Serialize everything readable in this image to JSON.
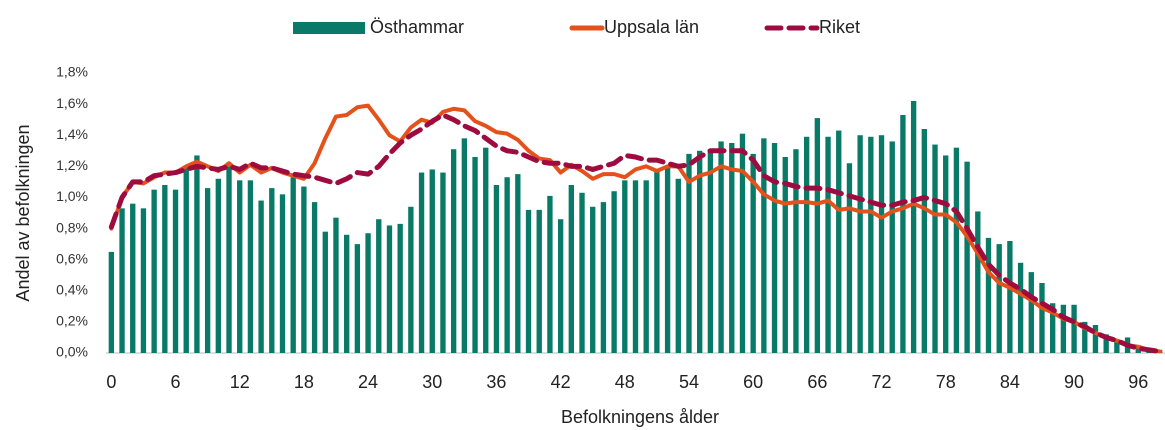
{
  "chart_data": {
    "type": "bar_line",
    "x_label": "Befolkningens ålder",
    "y_label": "Andel av befolkningen",
    "categories": [
      "0",
      null,
      null,
      null,
      null,
      null,
      "6",
      null,
      null,
      null,
      null,
      null,
      "12",
      null,
      null,
      null,
      null,
      null,
      "18",
      null,
      null,
      null,
      null,
      null,
      "24",
      null,
      null,
      null,
      null,
      null,
      "30",
      null,
      null,
      null,
      null,
      null,
      "36",
      null,
      null,
      null,
      null,
      null,
      "42",
      null,
      null,
      null,
      null,
      null,
      "48",
      null,
      null,
      null,
      null,
      null,
      "54",
      null,
      null,
      null,
      null,
      null,
      "60",
      null,
      null,
      null,
      null,
      null,
      "66",
      null,
      null,
      null,
      null,
      null,
      "72",
      null,
      null,
      null,
      null,
      null,
      "78",
      null,
      null,
      null,
      null,
      null,
      "84",
      null,
      null,
      null,
      null,
      null,
      "90",
      null,
      null,
      null,
      null,
      null,
      "96",
      null,
      null
    ],
    "series": [
      {
        "name": "Östhammar",
        "type": "bar",
        "color": "#0a7a68",
        "values": [
          0.65,
          0.93,
          0.96,
          0.93,
          1.05,
          1.08,
          1.05,
          1.2,
          1.27,
          1.06,
          1.12,
          1.2,
          1.11,
          1.11,
          0.98,
          1.06,
          1.02,
          1.13,
          1.07,
          0.97,
          0.78,
          0.87,
          0.76,
          0.7,
          0.77,
          0.86,
          0.82,
          0.83,
          0.94,
          1.16,
          1.18,
          1.16,
          1.31,
          1.38,
          1.26,
          1.32,
          1.08,
          1.13,
          1.15,
          0.92,
          0.92,
          1.01,
          0.86,
          1.08,
          1.03,
          0.94,
          0.97,
          1.04,
          1.11,
          1.11,
          1.11,
          1.17,
          1.2,
          1.12,
          1.28,
          1.3,
          1.31,
          1.36,
          1.35,
          1.41,
          1.28,
          1.38,
          1.35,
          1.26,
          1.31,
          1.39,
          1.51,
          1.39,
          1.43,
          1.22,
          1.4,
          1.39,
          1.4,
          1.36,
          1.53,
          1.62,
          1.44,
          1.34,
          1.27,
          1.32,
          1.23,
          0.91,
          0.74,
          0.7,
          0.72,
          0.58,
          0.52,
          0.45,
          0.32,
          0.31,
          0.31,
          0.2,
          0.18,
          0.12,
          0.09,
          0.1,
          0.05,
          0.03,
          0.02
        ]
      },
      {
        "name": "Uppsala län",
        "type": "line",
        "color": "#e4511a",
        "values": [
          0.8,
          1.0,
          1.1,
          1.09,
          1.13,
          1.16,
          1.16,
          1.2,
          1.23,
          1.2,
          1.17,
          1.22,
          1.16,
          1.21,
          1.16,
          1.19,
          1.16,
          1.14,
          1.12,
          1.22,
          1.38,
          1.52,
          1.53,
          1.58,
          1.59,
          1.5,
          1.4,
          1.36,
          1.45,
          1.5,
          1.48,
          1.55,
          1.57,
          1.56,
          1.49,
          1.46,
          1.42,
          1.41,
          1.37,
          1.3,
          1.25,
          1.24,
          1.16,
          1.21,
          1.17,
          1.12,
          1.15,
          1.15,
          1.13,
          1.18,
          1.2,
          1.17,
          1.2,
          1.2,
          1.1,
          1.14,
          1.16,
          1.2,
          1.18,
          1.17,
          1.1,
          1.02,
          0.98,
          0.96,
          0.97,
          0.97,
          0.96,
          0.98,
          0.92,
          0.93,
          0.91,
          0.91,
          0.87,
          0.91,
          0.93,
          0.96,
          0.93,
          0.89,
          0.89,
          0.84,
          0.75,
          0.64,
          0.52,
          0.45,
          0.42,
          0.38,
          0.34,
          0.29,
          0.26,
          0.22,
          0.2,
          0.16,
          0.13,
          0.1,
          0.08,
          0.05,
          0.04,
          0.02,
          0.01
        ]
      },
      {
        "name": "Riket",
        "type": "dashed-line",
        "color": "#9e0b3f",
        "values": [
          0.81,
          1.0,
          1.1,
          1.1,
          1.14,
          1.15,
          1.16,
          1.18,
          1.2,
          1.19,
          1.18,
          1.2,
          1.18,
          1.22,
          1.19,
          1.19,
          1.17,
          1.15,
          1.14,
          1.13,
          1.11,
          1.09,
          1.12,
          1.16,
          1.15,
          1.2,
          1.28,
          1.35,
          1.4,
          1.44,
          1.49,
          1.53,
          1.5,
          1.46,
          1.43,
          1.38,
          1.33,
          1.3,
          1.29,
          1.26,
          1.23,
          1.22,
          1.22,
          1.2,
          1.2,
          1.18,
          1.2,
          1.22,
          1.27,
          1.26,
          1.24,
          1.24,
          1.22,
          1.2,
          1.21,
          1.26,
          1.3,
          1.3,
          1.3,
          1.3,
          1.24,
          1.14,
          1.1,
          1.09,
          1.07,
          1.06,
          1.06,
          1.05,
          1.03,
          1.01,
          0.99,
          0.97,
          0.95,
          0.95,
          0.97,
          0.98,
          1.0,
          0.98,
          0.96,
          0.91,
          0.8,
          0.68,
          0.57,
          0.5,
          0.45,
          0.41,
          0.36,
          0.32,
          0.28,
          0.23,
          0.2,
          0.17,
          0.13,
          0.1,
          0.08,
          0.05,
          0.03,
          0.02,
          0.01
        ]
      }
    ],
    "ylim": [
      0,
      1.8
    ],
    "yticks": [
      {
        "value": 0,
        "label": "0,0%"
      },
      {
        "value": 0.2,
        "label": "0,2%"
      },
      {
        "value": 0.4,
        "label": "0,4%"
      },
      {
        "value": 0.6,
        "label": "0,6%"
      },
      {
        "value": 0.8,
        "label": "0,8%"
      },
      {
        "value": 1.0,
        "label": "1,0%"
      },
      {
        "value": 1.2,
        "label": "1,2%"
      },
      {
        "value": 1.4,
        "label": "1,4%"
      },
      {
        "value": 1.6,
        "label": "1,6%"
      },
      {
        "value": 1.8,
        "label": "1,8%"
      }
    ],
    "legend": "top"
  }
}
